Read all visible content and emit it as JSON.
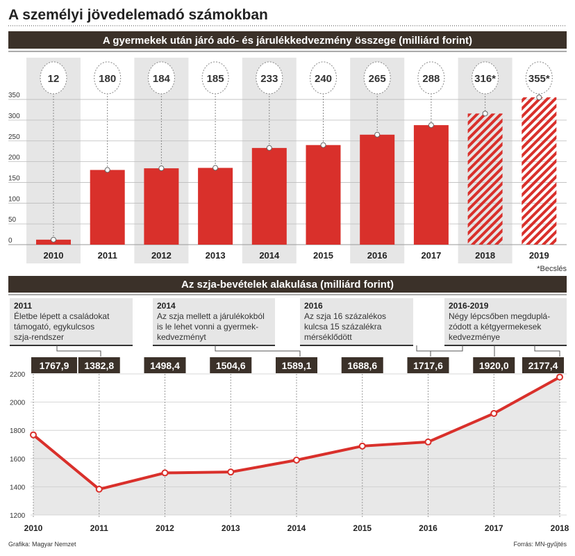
{
  "title": "A személyi jövedelemadó számokban",
  "footer_left": "Grafika: Magyar Nemzet",
  "footer_right": "Forrás: MN-gyűjtés",
  "colors": {
    "bar": "#d9302b",
    "header": "#3b3129",
    "column_bg": "#e6e6e6",
    "area": "#e8e8e8"
  },
  "chart_data": [
    {
      "type": "bar",
      "title": "A gyermekek után járó adó- és járulékkedvezmény összege (milliárd forint)",
      "categories": [
        "2010",
        "2011",
        "2012",
        "2013",
        "2014",
        "2015",
        "2016",
        "2017",
        "2018",
        "2019"
      ],
      "values": [
        12,
        180,
        184,
        185,
        233,
        240,
        265,
        288,
        316,
        355
      ],
      "value_labels": [
        "12",
        "180",
        "184",
        "185",
        "233",
        "240",
        "265",
        "288",
        "316*",
        "355*"
      ],
      "estimated": [
        false,
        false,
        false,
        false,
        false,
        false,
        false,
        false,
        true,
        true
      ],
      "yticks": [
        0,
        50,
        100,
        150,
        200,
        250,
        300,
        350
      ],
      "ylim": [
        0,
        350
      ],
      "note": "*Becslés"
    },
    {
      "type": "area",
      "title": "Az szja-bevételek alakulása (milliárd forint)",
      "categories": [
        "2010",
        "2011",
        "2012",
        "2013",
        "2014",
        "2015",
        "2016",
        "2017",
        "2018"
      ],
      "values": [
        1767.9,
        1382.8,
        1498.4,
        1504.6,
        1589.1,
        1688.6,
        1717.6,
        1920.0,
        2177.4
      ],
      "value_labels": [
        "1767,9",
        "1382,8",
        "1498,4",
        "1504,6",
        "1589,1",
        "1688,6",
        "1717,6",
        "1920,0",
        "2177,4"
      ],
      "yticks": [
        1200,
        1400,
        1600,
        1800,
        2000,
        2200
      ],
      "ylim": [
        1200,
        2200
      ],
      "annotations": [
        {
          "year": "2011",
          "lines": [
            "Életbe lépett a családokat",
            "támogató, egykulcsos",
            "szja-rendszer"
          ]
        },
        {
          "year": "2014",
          "lines": [
            "Az szja mellett a járulékokból",
            "is le lehet vonni a gyermek-",
            "kedvezményt"
          ]
        },
        {
          "year": "2016",
          "lines": [
            "Az szja 16 százalékos",
            "kulcsa 15 százalékra",
            "mérséklődött"
          ]
        },
        {
          "year": "2016-2019",
          "lines": [
            "Négy lépcsőben megduplá-",
            "zódott a kétgyermekesek",
            "kedvezménye"
          ]
        }
      ]
    }
  ]
}
